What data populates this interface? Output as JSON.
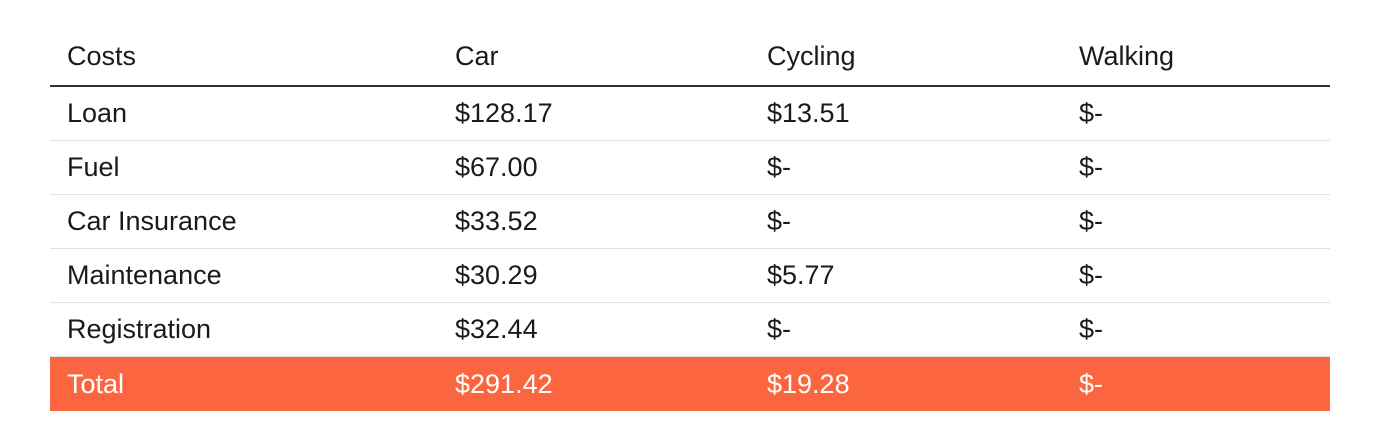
{
  "table": {
    "headers": [
      "Costs",
      "Car",
      "Cycling",
      "Walking"
    ],
    "rows": [
      [
        "Loan",
        "$128.17",
        "$13.51",
        "$-"
      ],
      [
        "Fuel",
        "$67.00",
        "$-",
        "$-"
      ],
      [
        "Car Insurance",
        "$33.52",
        "$-",
        "$-"
      ],
      [
        "Maintenance",
        "$30.29",
        "$5.77",
        "$-"
      ],
      [
        "Registration",
        "$32.44",
        "$-",
        "$-"
      ]
    ],
    "total": [
      "Total",
      "$291.42",
      "$19.28",
      "$-"
    ]
  },
  "colors": {
    "total_row_background": "#fb6640",
    "total_row_text": "#ffffff",
    "header_rule": "#333333",
    "row_divider": "#e3e3e3"
  }
}
